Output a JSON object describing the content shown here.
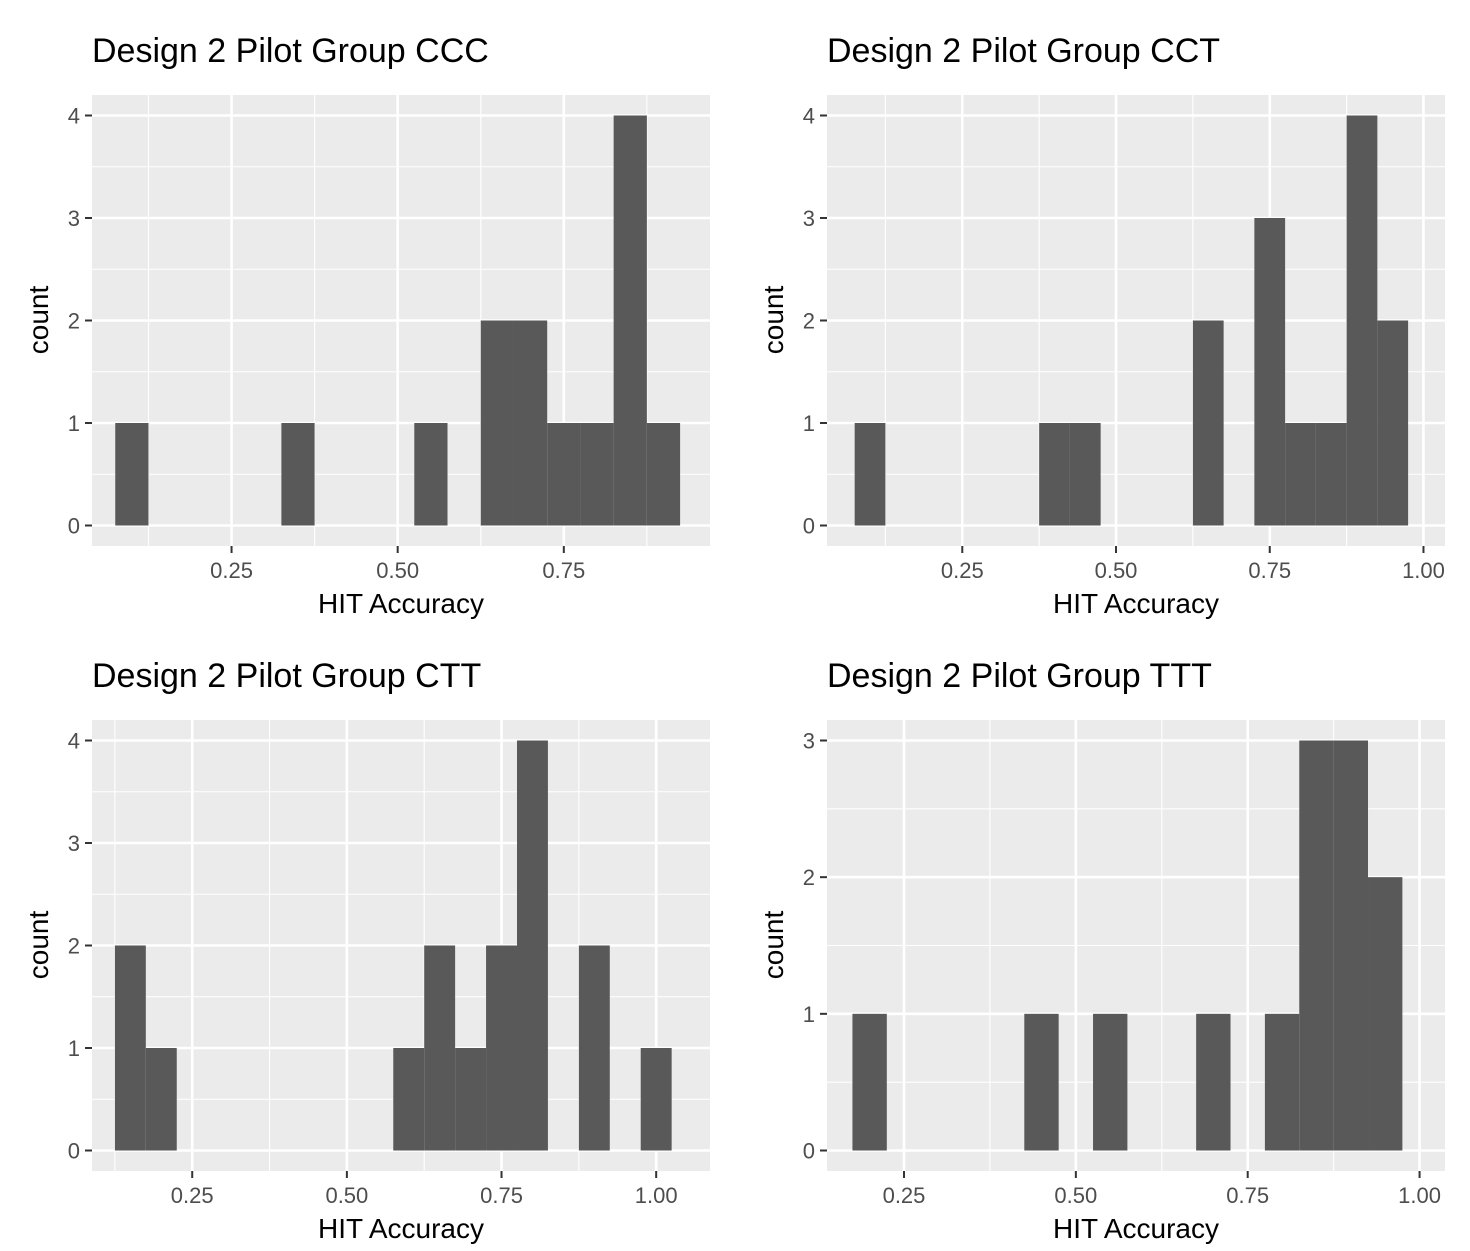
{
  "chart_data": [
    {
      "type": "bar",
      "title": "Design 2 Pilot Group CCC",
      "xlabel": "HIT Accuracy",
      "ylabel": "count",
      "xlim": [
        0.04,
        0.97
      ],
      "ylim": [
        -0.2,
        4.2
      ],
      "x_ticks": [
        "0.25",
        "0.50",
        "0.75"
      ],
      "x_tick_values": [
        0.25,
        0.5,
        0.75
      ],
      "y_ticks": [
        "0",
        "1",
        "2",
        "3",
        "4"
      ],
      "y_tick_values": [
        0,
        1,
        2,
        3,
        4
      ],
      "bin_width": 0.05,
      "bins": [
        {
          "x": 0.1,
          "count": 1
        },
        {
          "x": 0.35,
          "count": 1
        },
        {
          "x": 0.55,
          "count": 1
        },
        {
          "x": 0.65,
          "count": 2
        },
        {
          "x": 0.7,
          "count": 2
        },
        {
          "x": 0.75,
          "count": 1
        },
        {
          "x": 0.8,
          "count": 1
        },
        {
          "x": 0.85,
          "count": 4
        },
        {
          "x": 0.9,
          "count": 1
        }
      ],
      "grid": true
    },
    {
      "type": "bar",
      "title": "Design 2 Pilot Group CCT",
      "xlabel": "HIT Accuracy",
      "ylabel": "count",
      "xlim": [
        0.03,
        1.035
      ],
      "ylim": [
        -0.2,
        4.2
      ],
      "x_ticks": [
        "0.25",
        "0.50",
        "0.75",
        "1.00"
      ],
      "x_tick_values": [
        0.25,
        0.5,
        0.75,
        1.0
      ],
      "y_ticks": [
        "0",
        "1",
        "2",
        "3",
        "4"
      ],
      "y_tick_values": [
        0,
        1,
        2,
        3,
        4
      ],
      "bin_width": 0.05,
      "bins": [
        {
          "x": 0.1,
          "count": 1
        },
        {
          "x": 0.4,
          "count": 1
        },
        {
          "x": 0.45,
          "count": 1
        },
        {
          "x": 0.65,
          "count": 2
        },
        {
          "x": 0.75,
          "count": 3
        },
        {
          "x": 0.8,
          "count": 1
        },
        {
          "x": 0.85,
          "count": 1
        },
        {
          "x": 0.9,
          "count": 4
        },
        {
          "x": 0.95,
          "count": 2
        }
      ],
      "grid": true
    },
    {
      "type": "bar",
      "title": "Design 2 Pilot Group CTT",
      "xlabel": "HIT Accuracy",
      "ylabel": "count",
      "xlim": [
        0.088,
        1.087
      ],
      "ylim": [
        -0.2,
        4.2
      ],
      "x_ticks": [
        "0.25",
        "0.50",
        "0.75",
        "1.00"
      ],
      "x_tick_values": [
        0.25,
        0.5,
        0.75,
        1.0
      ],
      "y_ticks": [
        "0",
        "1",
        "2",
        "3",
        "4"
      ],
      "y_tick_values": [
        0,
        1,
        2,
        3,
        4
      ],
      "bin_width": 0.05,
      "bins": [
        {
          "x": 0.15,
          "count": 2
        },
        {
          "x": 0.2,
          "count": 1
        },
        {
          "x": 0.6,
          "count": 1
        },
        {
          "x": 0.65,
          "count": 2
        },
        {
          "x": 0.7,
          "count": 1
        },
        {
          "x": 0.75,
          "count": 2
        },
        {
          "x": 0.8,
          "count": 4
        },
        {
          "x": 0.9,
          "count": 2
        },
        {
          "x": 1.0,
          "count": 1
        }
      ],
      "grid": true
    },
    {
      "type": "bar",
      "title": "Design 2 Pilot Group TTT",
      "xlabel": "HIT Accuracy",
      "ylabel": "count",
      "xlim": [
        0.138,
        1.037
      ],
      "ylim": [
        -0.15,
        3.15
      ],
      "x_ticks": [
        "0.25",
        "0.50",
        "0.75",
        "1.00"
      ],
      "x_tick_values": [
        0.25,
        0.5,
        0.75,
        1.0
      ],
      "y_ticks": [
        "0",
        "1",
        "2",
        "3"
      ],
      "y_tick_values": [
        0,
        1,
        2,
        3
      ],
      "bin_width": 0.05,
      "bins": [
        {
          "x": 0.2,
          "count": 1
        },
        {
          "x": 0.45,
          "count": 1
        },
        {
          "x": 0.55,
          "count": 1
        },
        {
          "x": 0.7,
          "count": 1
        },
        {
          "x": 0.8,
          "count": 1
        },
        {
          "x": 0.85,
          "count": 3
        },
        {
          "x": 0.9,
          "count": 3
        },
        {
          "x": 0.95,
          "count": 2
        }
      ],
      "grid": true
    }
  ],
  "colors": {
    "panel_background": "#ebebeb",
    "grid_major": "#ffffff",
    "bar_fill": "#595959",
    "tick_text": "#4d4d4d",
    "axis_ticks": "#333333"
  }
}
